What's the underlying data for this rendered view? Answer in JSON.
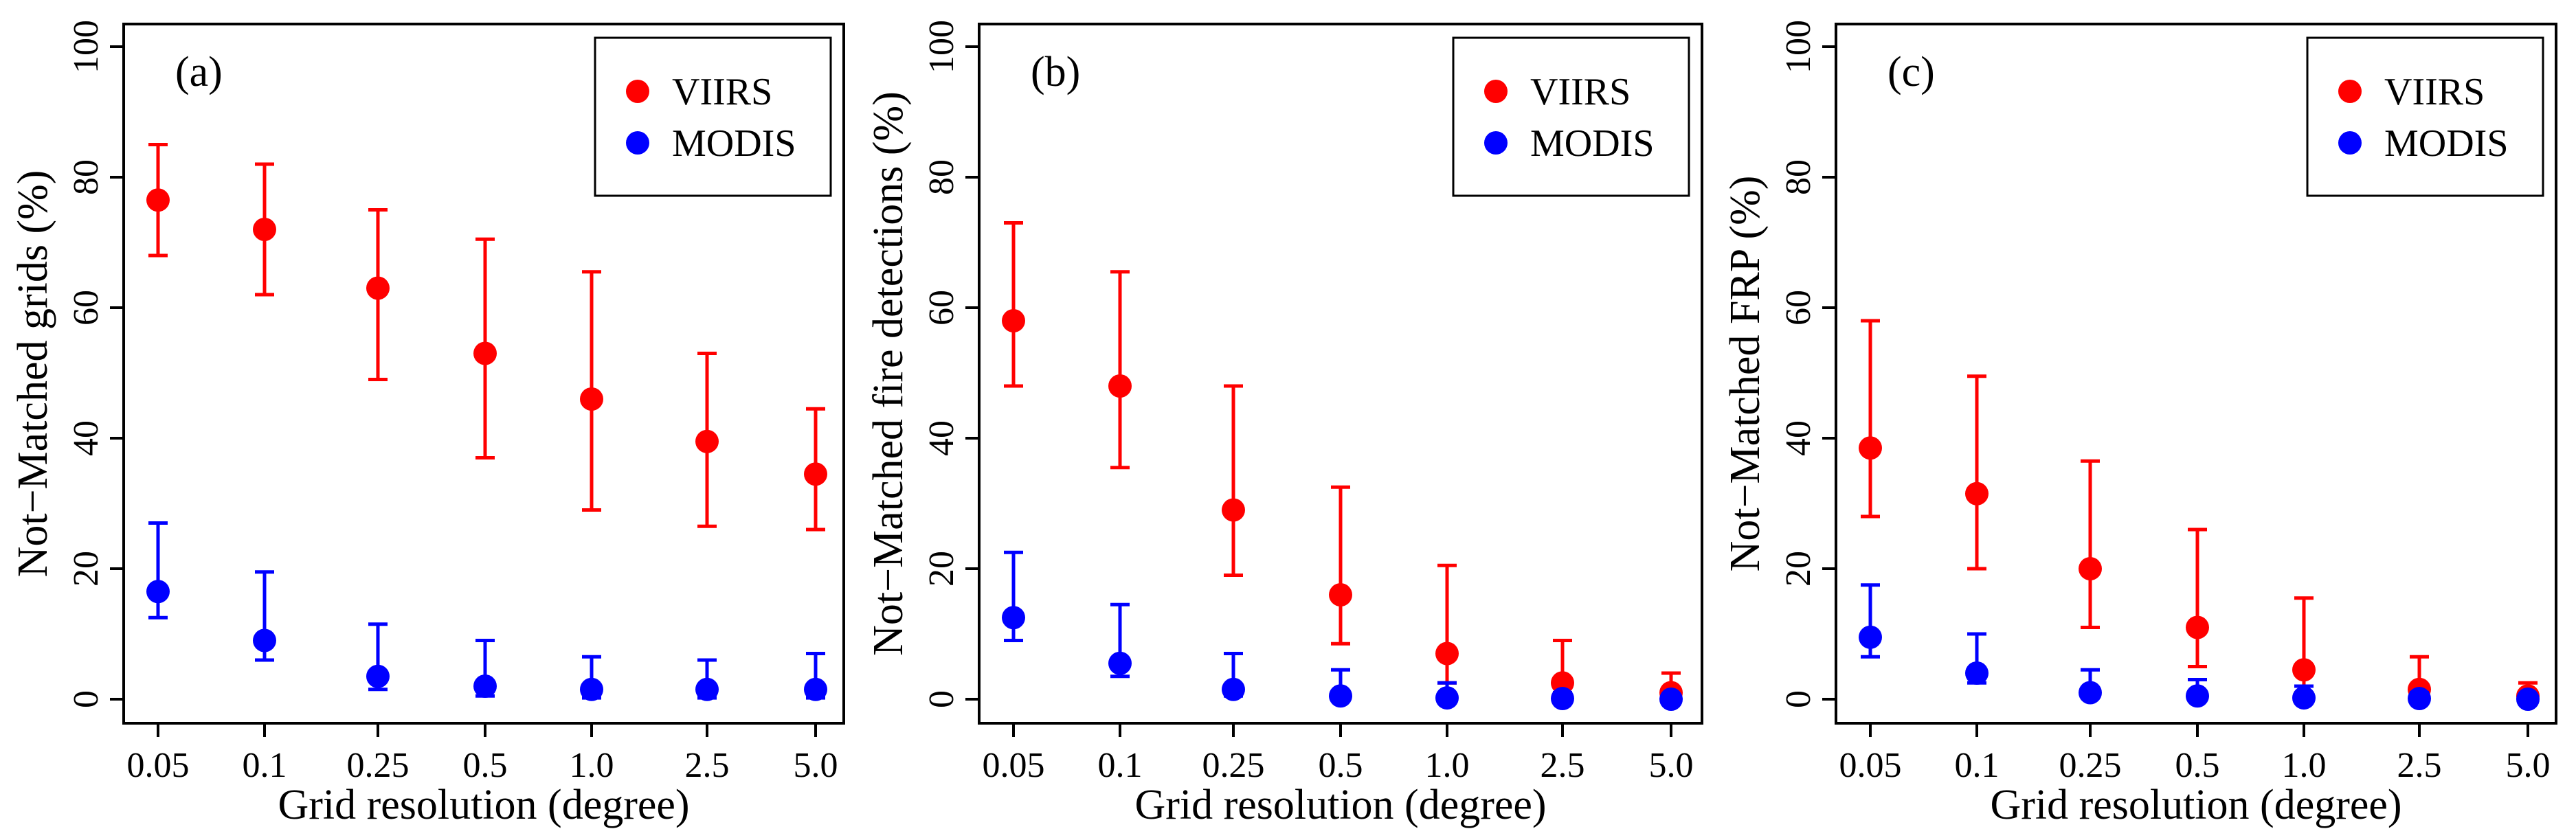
{
  "chart_data": [
    {
      "type": "scatter",
      "panel_label": "(a)",
      "xlabel": "Grid resolution (degree)",
      "ylabel": "Not−Matched grids (%)",
      "categories": [
        "0.05",
        "0.1",
        "0.25",
        "0.5",
        "1.0",
        "2.5",
        "5.0"
      ],
      "ylim": [
        0,
        100
      ],
      "yticks": [
        "0",
        "20",
        "40",
        "60",
        "80",
        "100"
      ],
      "legend_position": "top-right",
      "series": [
        {
          "name": "VIIRS",
          "color": "#ff0000",
          "values": [
            76.5,
            72,
            63,
            53,
            46,
            39.5,
            34.5
          ],
          "upper": [
            85,
            82,
            75,
            70.5,
            65.5,
            53,
            44.5
          ],
          "lower": [
            68,
            62,
            49,
            37,
            29,
            26.5,
            26
          ]
        },
        {
          "name": "MODIS",
          "color": "#0000ff",
          "values": [
            16.5,
            9,
            3.5,
            2,
            1.5,
            1.5,
            1.5
          ],
          "upper": [
            27,
            19.5,
            11.5,
            9,
            6.5,
            6,
            7
          ],
          "lower": [
            12.5,
            6,
            1.5,
            0.5,
            0.2,
            0.2,
            0.2
          ]
        }
      ]
    },
    {
      "type": "scatter",
      "panel_label": "(b)",
      "xlabel": "Grid resolution (degree)",
      "ylabel": "Not−Matched fire detections (%)",
      "categories": [
        "0.05",
        "0.1",
        "0.25",
        "0.5",
        "1.0",
        "2.5",
        "5.0"
      ],
      "ylim": [
        0,
        100
      ],
      "yticks": [
        "0",
        "20",
        "40",
        "60",
        "80",
        "100"
      ],
      "legend_position": "top-right",
      "series": [
        {
          "name": "VIIRS",
          "color": "#ff0000",
          "values": [
            58,
            48,
            29,
            16,
            7,
            2.5,
            1
          ],
          "upper": [
            73,
            65.5,
            48,
            32.5,
            20.5,
            9,
            4
          ],
          "lower": [
            48,
            35.5,
            19,
            8.5,
            2.5,
            0.5,
            0
          ]
        },
        {
          "name": "MODIS",
          "color": "#0000ff",
          "values": [
            12.5,
            5.5,
            1.5,
            0.5,
            0.2,
            0.1,
            0
          ],
          "upper": [
            22.5,
            14.5,
            7,
            4.5,
            2.5,
            1,
            0.5
          ],
          "lower": [
            9,
            3.5,
            0.5,
            0,
            0,
            0,
            0
          ]
        }
      ]
    },
    {
      "type": "scatter",
      "panel_label": "(c)",
      "xlabel": "Grid resolution (degree)",
      "ylabel": "Not−Matched FRP (%)",
      "categories": [
        "0.05",
        "0.1",
        "0.25",
        "0.5",
        "1.0",
        "2.5",
        "5.0"
      ],
      "ylim": [
        0,
        100
      ],
      "yticks": [
        "0",
        "20",
        "40",
        "60",
        "80",
        "100"
      ],
      "legend_position": "top-right",
      "series": [
        {
          "name": "VIIRS",
          "color": "#ff0000",
          "values": [
            38.5,
            31.5,
            20,
            11,
            4.5,
            1.5,
            0.5
          ],
          "upper": [
            58,
            49.5,
            36.5,
            26,
            15.5,
            6.5,
            2.5
          ],
          "lower": [
            28,
            20,
            11,
            5,
            1,
            0.2,
            0
          ]
        },
        {
          "name": "MODIS",
          "color": "#0000ff",
          "values": [
            9.5,
            4,
            1,
            0.5,
            0.2,
            0.1,
            0
          ],
          "upper": [
            17.5,
            10,
            4.5,
            3,
            2,
            1,
            0.5
          ],
          "lower": [
            6.5,
            2.5,
            0.3,
            0,
            0,
            0,
            0
          ]
        }
      ]
    }
  ]
}
